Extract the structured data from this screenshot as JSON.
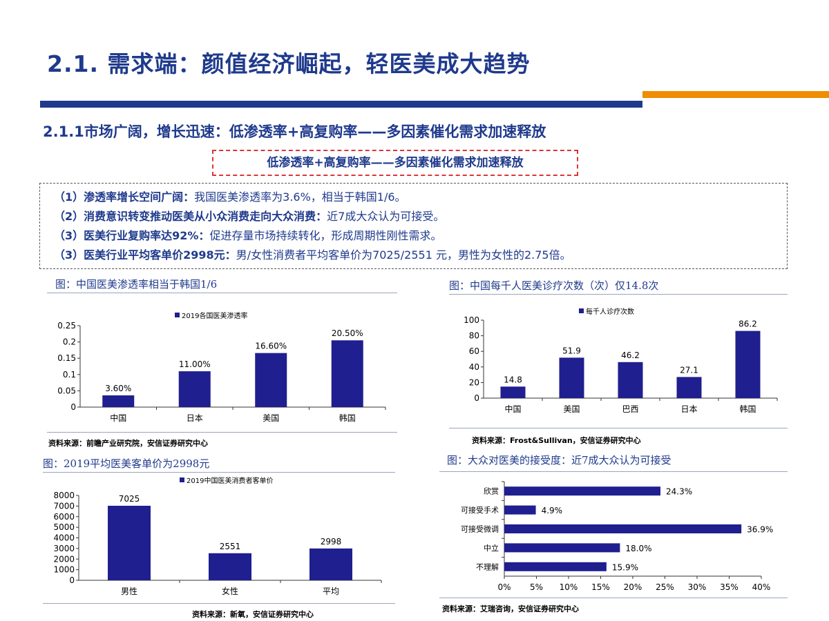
{
  "title": "2.1. 需求端：颜值经济崛起，轻医美成大趋势",
  "subtitle": "2.1.1市场广阔，增长迅速：低渗透率+高复购率——多因素催化需求加速释放",
  "highlight": "低渗透率+高复购率——多因素催化需求加速释放",
  "points": [
    {
      "head": "（1）渗透率增长空间广阔：",
      "body": "我国医美渗透率为3.6%，相当于韩国1/6。"
    },
    {
      "head": "（2）消费意识转变推动医美从小众消费走向大众消费：",
      "body": "近7成大众认为可接受。"
    },
    {
      "head": "（3）医美行业复购率达92%：",
      "body": "促进存量市场持续转化，形成周期性刚性需求。"
    },
    {
      "head": "（3）医美行业平均客单价2998元：",
      "body": "男/女性消费者平均客单价为7025/2551 元，男性为女性的2.75倍。"
    }
  ],
  "figures": [
    {
      "caption": "图：中国医美渗透率相当于韩国1/6",
      "source": "资料来源：前瞻产业研究院，安信证券研究中心"
    },
    {
      "caption": "图：中国每千人医美诊疗次数（次）仅14.8次",
      "source": "资料来源：Frost&Sullivan，安信证券研究中心"
    },
    {
      "caption": "图：2019平均医美客单价为2998元",
      "source": "资料来源：新氧，安信证券研究中心"
    },
    {
      "caption": "图：大众对医美的接受度：近7成大众认为可接受",
      "source": "资料来源：艾瑞咨询，安信证券研究中心"
    }
  ],
  "colors": {
    "bar": "#1f1f8f",
    "title": "#1f3a8c",
    "accent": "#f08c00",
    "highlight_border": "#d9343a"
  },
  "chart_data": [
    {
      "type": "bar",
      "legend": "2019各国医美渗透率",
      "categories": [
        "中国",
        "日本",
        "美国",
        "韩国"
      ],
      "values": [
        0.036,
        0.11,
        0.166,
        0.205
      ],
      "data_labels": [
        "3.60%",
        "11.00%",
        "16.60%",
        "20.50%"
      ],
      "ylim": [
        0,
        0.25
      ],
      "yticks": [
        "0",
        "0.05",
        "0.1",
        "0.15",
        "0.2",
        "0.25"
      ]
    },
    {
      "type": "bar",
      "legend": "每千人诊疗次数",
      "categories": [
        "中国",
        "美国",
        "巴西",
        "日本",
        "韩国"
      ],
      "values": [
        14.8,
        51.9,
        46.2,
        27.1,
        86.2
      ],
      "data_labels": [
        "14.8",
        "51.9",
        "46.2",
        "27.1",
        "86.2"
      ],
      "ylim": [
        0,
        100
      ],
      "yticks": [
        "0",
        "20",
        "40",
        "60",
        "80",
        "100"
      ]
    },
    {
      "type": "bar",
      "legend": "2019中国医美消费者客单价",
      "categories": [
        "男性",
        "女性",
        "平均"
      ],
      "values": [
        7025,
        2551,
        2998
      ],
      "data_labels": [
        "7025",
        "2551",
        "2998"
      ],
      "ylim": [
        0,
        8000
      ],
      "yticks": [
        "0",
        "1000",
        "2000",
        "3000",
        "4000",
        "5000",
        "6000",
        "7000",
        "8000"
      ]
    },
    {
      "type": "bar",
      "orientation": "horizontal",
      "categories": [
        "欣赏",
        "可接受手术",
        "可接受微调",
        "中立",
        "不理解"
      ],
      "values": [
        24.3,
        4.9,
        36.9,
        18.0,
        15.9
      ],
      "data_labels": [
        "24.3%",
        "4.9%",
        "36.9%",
        "18.0%",
        "15.9%"
      ],
      "xlim": [
        0,
        40
      ],
      "xticks": [
        "0%",
        "5%",
        "10%",
        "15%",
        "20%",
        "25%",
        "30%",
        "35%",
        "40%"
      ]
    }
  ]
}
